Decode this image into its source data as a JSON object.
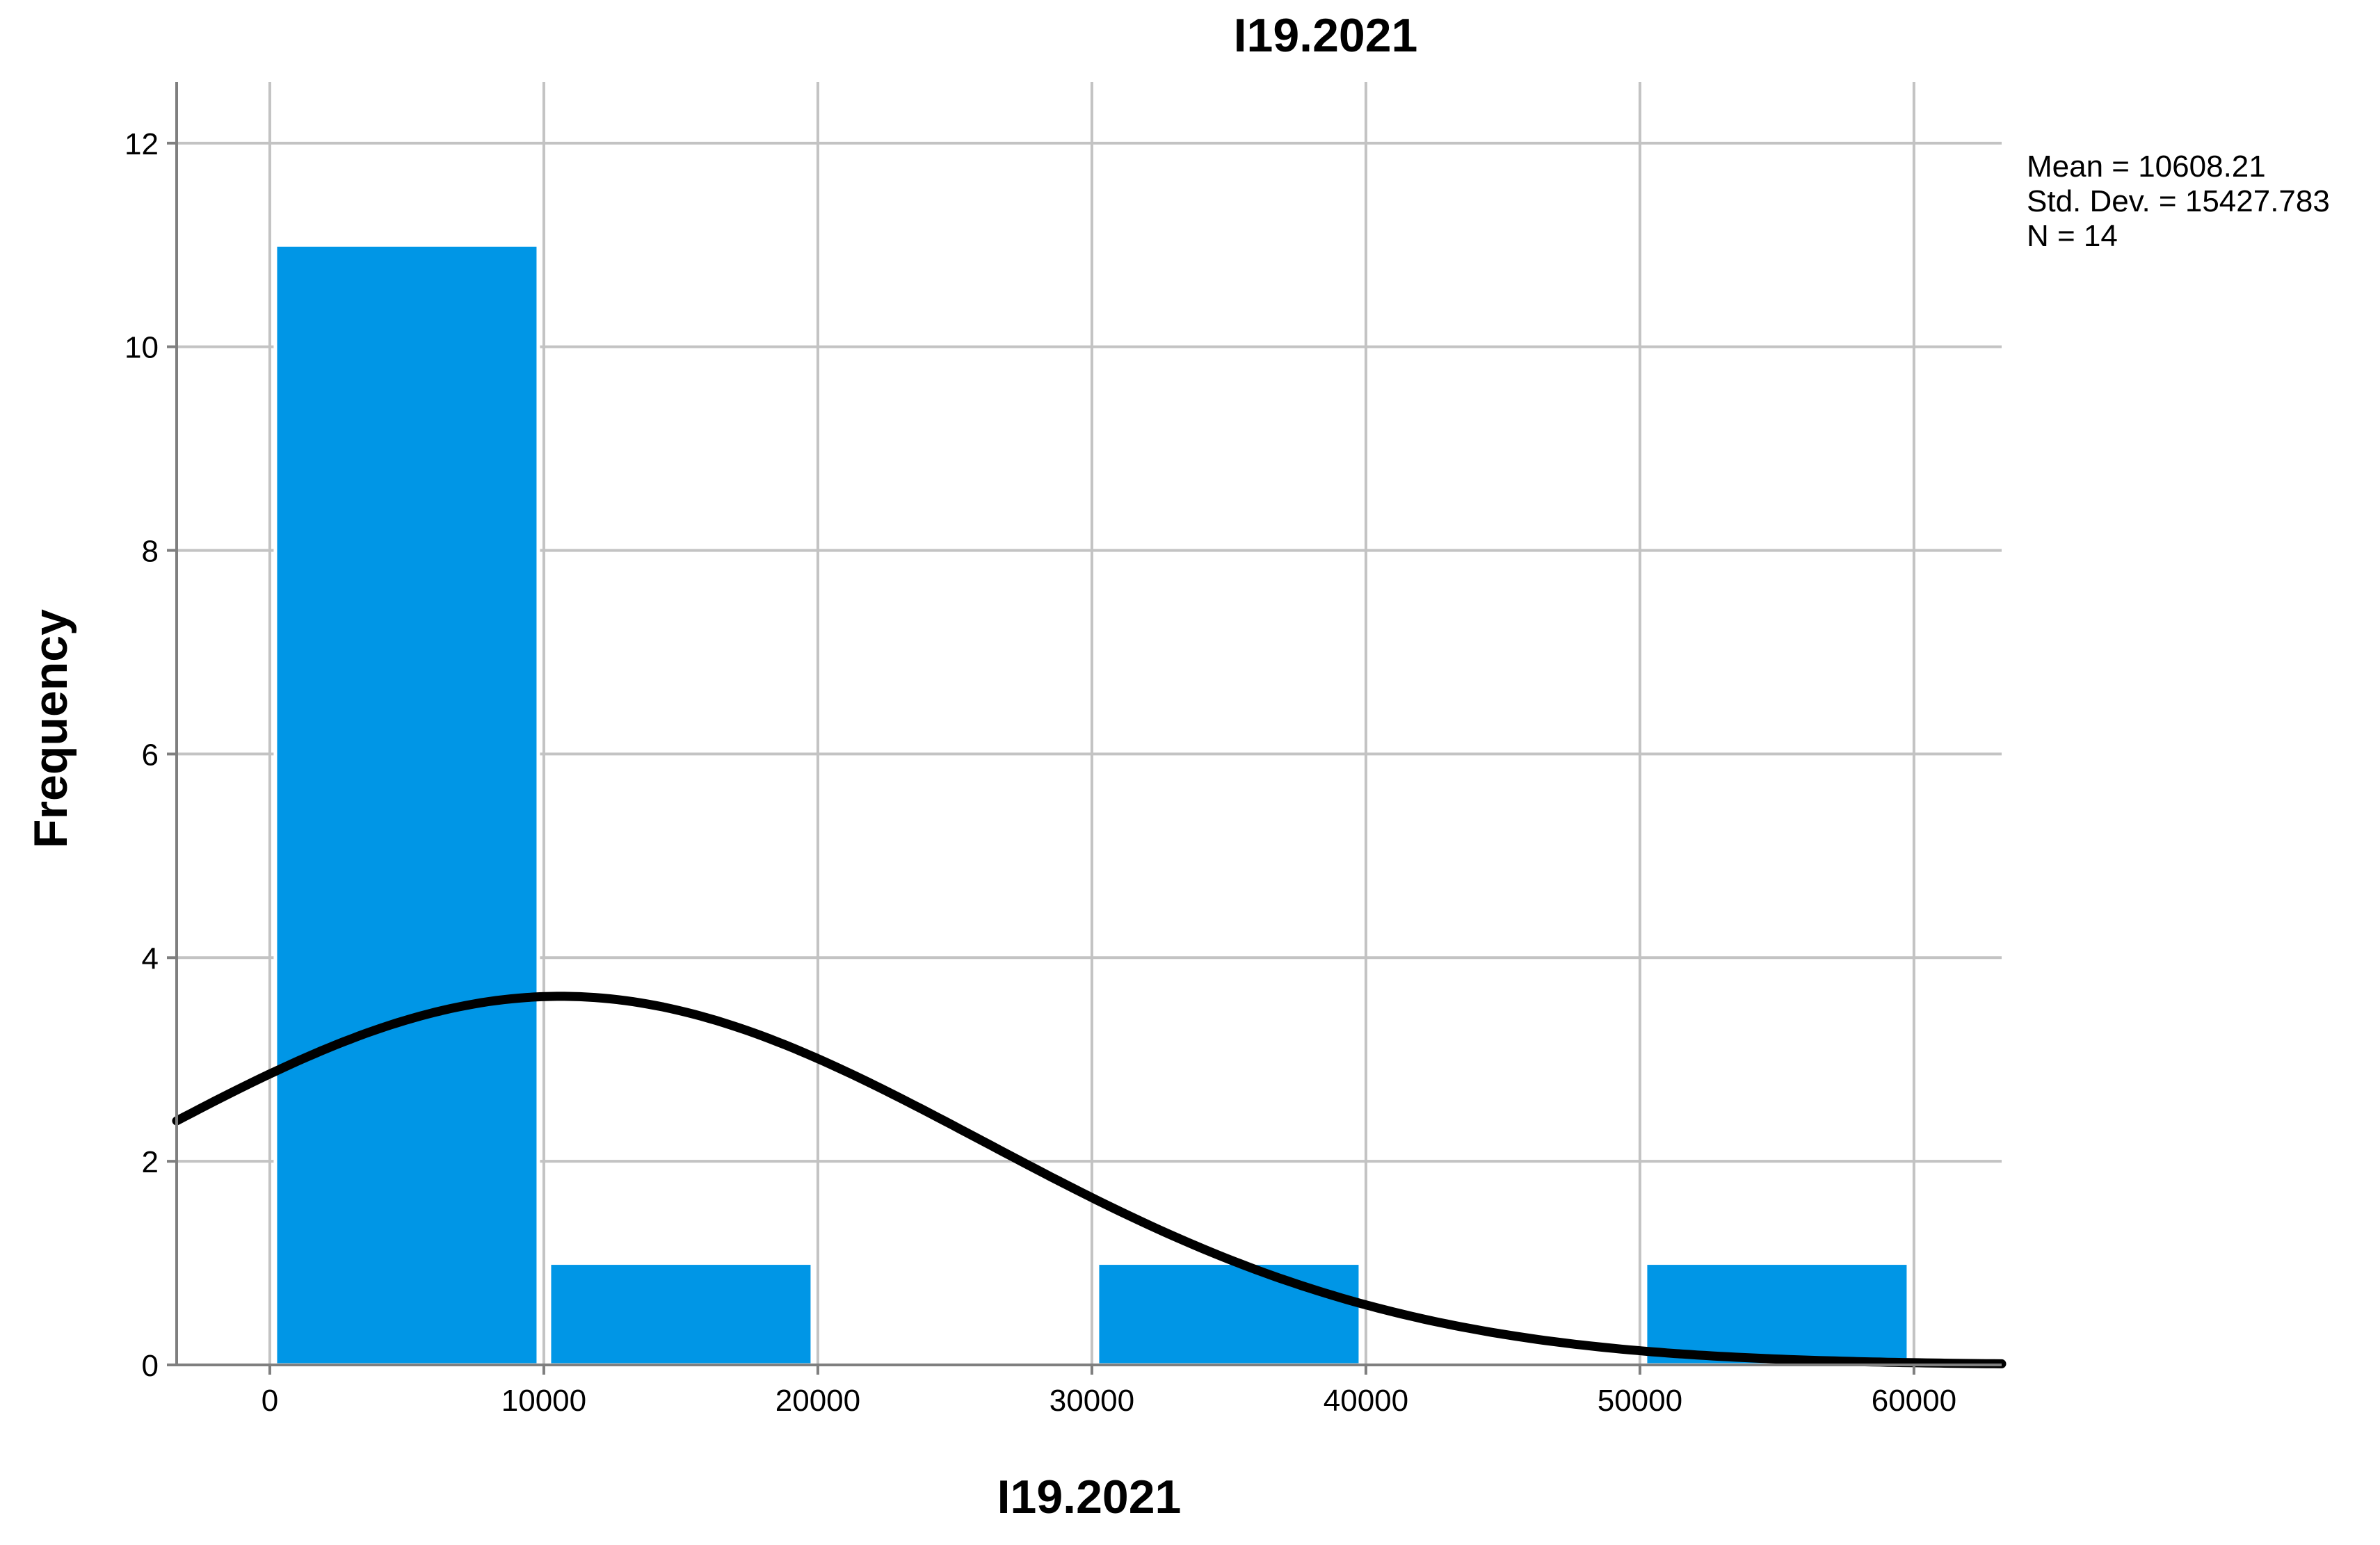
{
  "chart_data": {
    "type": "bar",
    "subtype": "histogram",
    "title": "I19.2021",
    "xlabel": "I19.2021",
    "ylabel": "Frequency",
    "bins": [
      {
        "start": 0,
        "end": 10000,
        "count": 11
      },
      {
        "start": 10000,
        "end": 20000,
        "count": 1
      },
      {
        "start": 20000,
        "end": 30000,
        "count": 0
      },
      {
        "start": 30000,
        "end": 40000,
        "count": 1
      },
      {
        "start": 40000,
        "end": 50000,
        "count": 0
      },
      {
        "start": 50000,
        "end": 60000,
        "count": 1
      }
    ],
    "xlim": [
      -3400,
      63200
    ],
    "ylim": [
      0,
      12.6
    ],
    "x_ticks": [
      0,
      10000,
      20000,
      30000,
      40000,
      50000,
      60000
    ],
    "x_tick_labels": [
      "0",
      "10000",
      "20000",
      "30000",
      "40000",
      "50000",
      "60000"
    ],
    "y_ticks": [
      0,
      2,
      4,
      6,
      8,
      10,
      12
    ],
    "y_tick_labels": [
      "0",
      "2",
      "4",
      "6",
      "8",
      "10",
      "12"
    ],
    "normal_curve": {
      "mean": 10608.21,
      "std_dev": 15427.783,
      "n": 14,
      "bin_width": 10000
    },
    "stats": {
      "mean": "Mean = 10608.21",
      "std_dev": "Std. Dev. = 15427.783",
      "n": "N = 14"
    },
    "grid": true,
    "colors": {
      "bar": "#0096e6",
      "curve": "#000000",
      "grid": "#c3c3c3",
      "axis": "#7f7f7f"
    }
  }
}
